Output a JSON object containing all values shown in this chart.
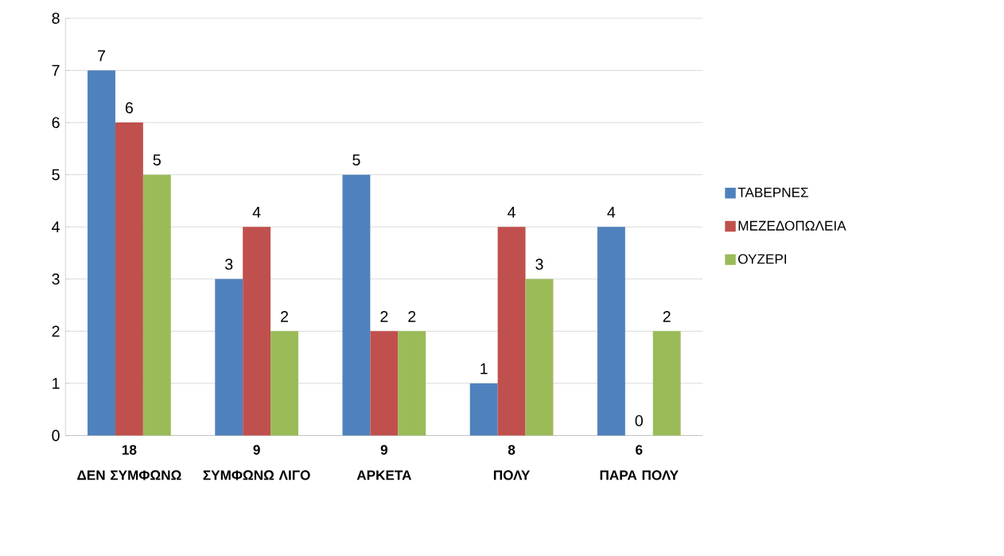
{
  "chart_data": {
    "type": "bar",
    "categories": [
      "ΔΕΝ ΣΥΜΦΩΝΩ",
      "ΣΥΜΦΩΝΩ ΛΙΓΟ",
      "ΑΡΚΕΤΑ",
      "ΠΟΛΥ",
      "ΠΑΡΑ ΠΟΛΥ"
    ],
    "totals": [
      "18",
      "9",
      "9",
      "8",
      "6"
    ],
    "series": [
      {
        "name": "ΤΑΒΕΡΝΕΣ",
        "color": "#4f81bd",
        "values": [
          7,
          3,
          5,
          1,
          4
        ]
      },
      {
        "name": "ΜΕΖΕΔΟΠΩΛΕΙΑ",
        "color": "#c0504d",
        "values": [
          6,
          4,
          2,
          4,
          0
        ]
      },
      {
        "name": "ΟΥΖΕΡΙ",
        "color": "#9bbb59",
        "values": [
          5,
          2,
          2,
          3,
          2
        ]
      }
    ],
    "ylim": [
      0,
      8
    ],
    "yticks": [
      0,
      1,
      2,
      3,
      4,
      5,
      6,
      7,
      8
    ],
    "grid": "y",
    "legend": "right",
    "data_labels": true
  }
}
